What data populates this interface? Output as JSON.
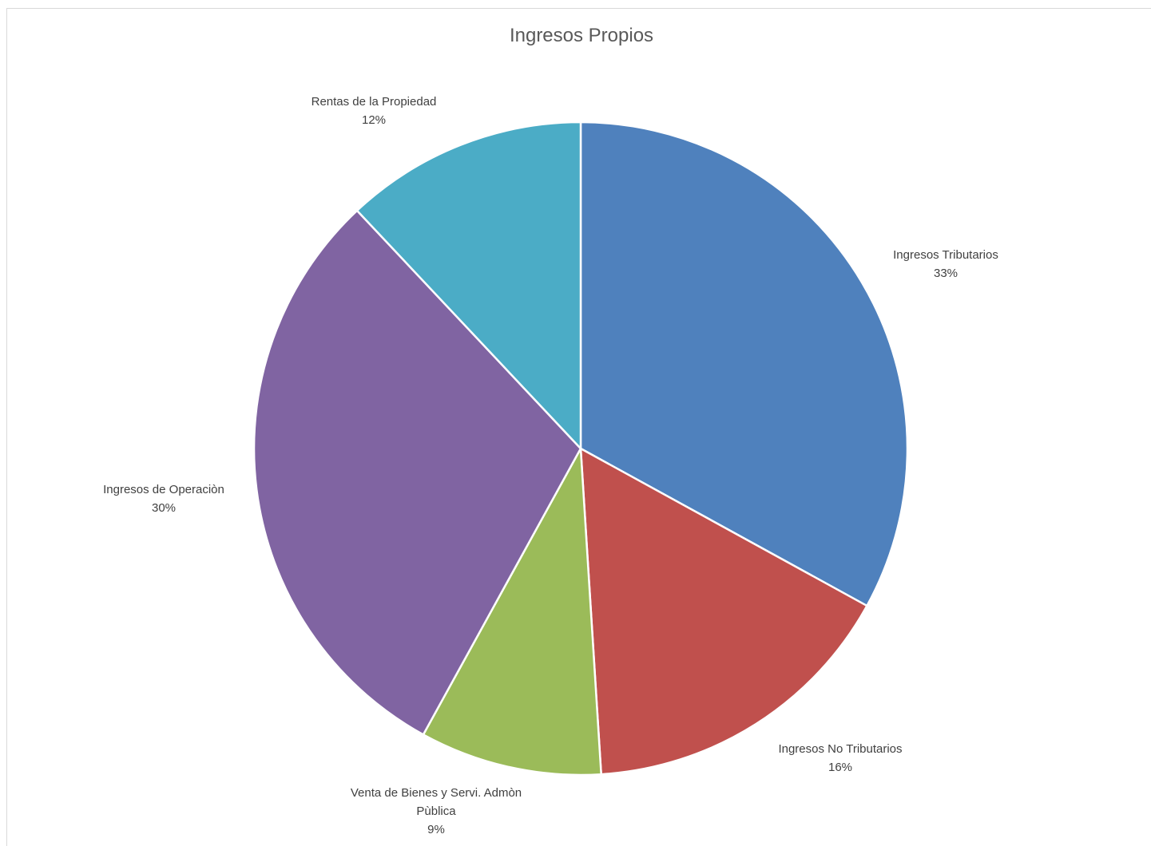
{
  "chart_data": {
    "type": "pie",
    "title": "Ingresos Propios",
    "slices": [
      {
        "label_lines": [
          "Ingresos Tributarios"
        ],
        "percent_label": "33%",
        "value": 33,
        "color": "#4f81bd"
      },
      {
        "label_lines": [
          "Ingresos No Tributarios"
        ],
        "percent_label": "16%",
        "value": 16,
        "color": "#c0504d"
      },
      {
        "label_lines": [
          "Venta de Bienes y Servi. Admòn",
          "Pùblica"
        ],
        "percent_label": "9%",
        "value": 9,
        "color": "#9bbb59"
      },
      {
        "label_lines": [
          "Ingresos de Operaciòn"
        ],
        "percent_label": "30%",
        "value": 30,
        "color": "#8064a2"
      },
      {
        "label_lines": [
          "Rentas de la Propiedad"
        ],
        "percent_label": "12%",
        "value": 12,
        "color": "#4bacc6"
      }
    ],
    "start": "12 o'clock",
    "direction": "clockwise",
    "legend": "none",
    "data_labels": "outside"
  }
}
